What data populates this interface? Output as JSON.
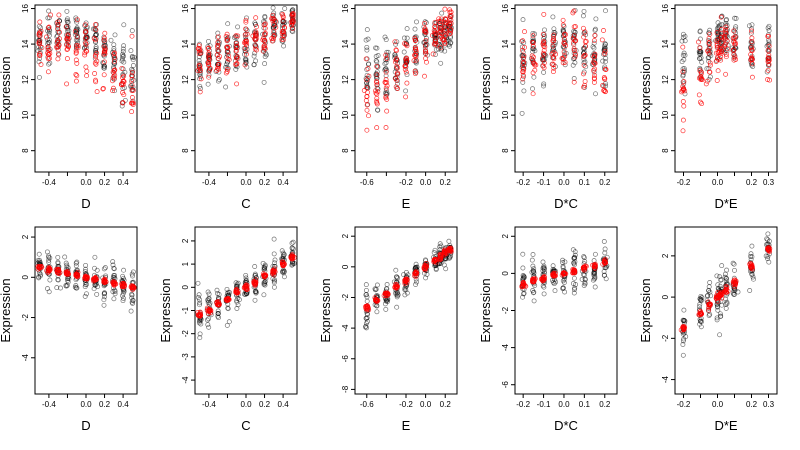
{
  "chart_data": [
    {
      "type": "scatter",
      "xlabel": "D",
      "ylabel": "Expression",
      "xlim": [
        -0.55,
        0.55
      ],
      "ylim": [
        6.8,
        16.2
      ],
      "xticks": [
        -0.4,
        -0.2,
        0.0,
        0.2,
        0.4
      ],
      "xtick_labels": [
        "-0.4",
        "",
        "0.0",
        "0.2",
        "0.4"
      ],
      "yticks": [
        8,
        10,
        12,
        14,
        16
      ],
      "ytick_labels": [
        "8",
        "10",
        "12",
        "14",
        "16"
      ],
      "x_groups": [
        -0.5,
        -0.4,
        -0.3,
        -0.2,
        -0.1,
        0.0,
        0.1,
        0.2,
        0.3,
        0.4,
        0.5
      ],
      "black_center": [
        14.0,
        14.3,
        14.5,
        14.6,
        14.4,
        14.5,
        14.2,
        13.6,
        13.2,
        12.8,
        12.4
      ],
      "black_spread": [
        1.3,
        1.4,
        1.0,
        0.9,
        0.9,
        0.9,
        1.1,
        1.4,
        1.6,
        1.8,
        1.9
      ],
      "red_center": [
        14.0,
        14.2,
        14.1,
        14.0,
        13.8,
        13.6,
        13.3,
        13.0,
        12.5,
        11.8,
        11.2
      ],
      "red_spread": [
        1.3,
        1.5,
        1.2,
        1.2,
        1.3,
        1.4,
        1.4,
        1.5,
        1.7,
        1.8,
        1.8
      ]
    },
    {
      "type": "scatter",
      "xlabel": "C",
      "ylabel": "Expression",
      "xlim": [
        -0.55,
        0.55
      ],
      "ylim": [
        6.8,
        16.2
      ],
      "xticks": [
        -0.4,
        -0.2,
        0.0,
        0.2,
        0.4
      ],
      "xtick_labels": [
        "-0.4",
        "",
        "0.0",
        "0.2",
        "0.4"
      ],
      "yticks": [
        8,
        10,
        12,
        14,
        16
      ],
      "ytick_labels": [
        "8",
        "10",
        "12",
        "14",
        "16"
      ],
      "x_groups": [
        -0.5,
        -0.4,
        -0.3,
        -0.2,
        -0.1,
        0.0,
        0.1,
        0.2,
        0.3,
        0.4,
        0.5
      ],
      "black_center": [
        12.6,
        12.8,
        13.1,
        13.4,
        13.7,
        13.9,
        14.2,
        14.5,
        14.8,
        15.0,
        15.2
      ],
      "black_spread": [
        1.2,
        1.3,
        1.3,
        1.3,
        1.2,
        1.2,
        1.2,
        1.2,
        1.0,
        0.9,
        0.8
      ],
      "red_center": [
        12.8,
        13.0,
        13.3,
        13.6,
        13.8,
        14.0,
        14.3,
        14.6,
        14.9,
        15.1,
        15.3
      ],
      "red_spread": [
        1.5,
        1.6,
        1.5,
        1.4,
        1.3,
        1.3,
        1.2,
        1.1,
        0.9,
        0.8,
        0.7
      ]
    },
    {
      "type": "scatter",
      "xlabel": "E",
      "ylabel": "Expression",
      "xlim": [
        -0.72,
        0.32
      ],
      "ylim": [
        6.8,
        16.2
      ],
      "xticks": [
        -0.6,
        -0.4,
        -0.2,
        0.0,
        0.2
      ],
      "xtick_labels": [
        "-0.6",
        "",
        "-0.2",
        "0.0",
        "0.2"
      ],
      "yticks": [
        8,
        10,
        12,
        14,
        16
      ],
      "ytick_labels": [
        "8",
        "10",
        "12",
        "14",
        "16"
      ],
      "x_groups": [
        -0.6,
        -0.5,
        -0.4,
        -0.3,
        -0.2,
        -0.1,
        0.0,
        0.1,
        0.15,
        0.2,
        0.25
      ],
      "black_center": [
        12.5,
        12.2,
        12.6,
        12.9,
        13.2,
        13.6,
        14.0,
        14.3,
        14.5,
        14.7,
        14.8
      ],
      "black_spread": [
        1.8,
        1.9,
        1.7,
        1.6,
        1.5,
        1.4,
        1.2,
        1.0,
        1.1,
        0.9,
        0.8
      ],
      "red_center": [
        11.0,
        11.4,
        11.9,
        12.4,
        12.9,
        13.4,
        13.9,
        14.4,
        14.8,
        15.0,
        15.2
      ],
      "red_spread": [
        1.8,
        1.6,
        1.5,
        1.4,
        1.3,
        1.2,
        1.1,
        1.0,
        0.9,
        0.8,
        0.7
      ]
    },
    {
      "type": "scatter",
      "xlabel": "D*C",
      "ylabel": "Expression",
      "xlim": [
        -0.24,
        0.26
      ],
      "ylim": [
        6.8,
        16.2
      ],
      "xticks": [
        -0.2,
        -0.1,
        0.0,
        0.1,
        0.2
      ],
      "xtick_labels": [
        "-0.2",
        "-0.1",
        "0.0",
        "0.1",
        "0.2"
      ],
      "yticks": [
        8,
        10,
        12,
        14,
        16
      ],
      "ytick_labels": [
        "8",
        "10",
        "12",
        "14",
        "16"
      ],
      "x_groups": [
        -0.2,
        -0.15,
        -0.1,
        -0.05,
        0.0,
        0.05,
        0.1,
        0.15,
        0.2
      ],
      "black_center": [
        13.0,
        13.4,
        13.6,
        13.8,
        14.0,
        13.9,
        13.6,
        13.4,
        13.0
      ],
      "black_spread": [
        1.8,
        1.6,
        1.5,
        1.4,
        1.3,
        1.4,
        1.5,
        1.6,
        1.8
      ],
      "red_center": [
        12.8,
        13.2,
        13.4,
        13.6,
        13.9,
        13.7,
        13.4,
        13.2,
        12.9
      ],
      "red_spread": [
        1.9,
        1.7,
        1.6,
        1.5,
        1.4,
        1.5,
        1.6,
        1.7,
        1.9
      ]
    },
    {
      "type": "scatter",
      "xlabel": "D*E",
      "ylabel": "Expression",
      "xlim": [
        -0.25,
        0.35
      ],
      "ylim": [
        6.8,
        16.2
      ],
      "xticks": [
        -0.2,
        -0.1,
        0.0,
        0.1,
        0.2,
        0.3
      ],
      "xtick_labels": [
        "-0.2",
        "",
        "0.0",
        "",
        "0.2",
        "0.3"
      ],
      "yticks": [
        8,
        10,
        12,
        14,
        16
      ],
      "ytick_labels": [
        "8",
        "10",
        "12",
        "14",
        "16"
      ],
      "x_groups": [
        -0.2,
        -0.1,
        -0.05,
        0.0,
        0.02,
        0.05,
        0.1,
        0.2,
        0.3
      ],
      "black_center": [
        13.0,
        13.4,
        13.8,
        14.2,
        14.3,
        14.2,
        14.0,
        13.8,
        13.6
      ],
      "black_spread": [
        1.8,
        1.6,
        1.4,
        1.2,
        1.1,
        1.2,
        1.3,
        1.4,
        1.5
      ],
      "red_center": [
        11.5,
        12.4,
        13.0,
        13.8,
        14.0,
        14.0,
        13.9,
        13.7,
        13.5
      ],
      "red_spread": [
        2.0,
        1.7,
        1.5,
        1.4,
        1.3,
        1.3,
        1.4,
        1.5,
        1.6
      ]
    },
    {
      "type": "scatter",
      "xlabel": "D",
      "ylabel": "Expression",
      "xlim": [
        -0.55,
        0.55
      ],
      "ylim": [
        -5.8,
        2.5
      ],
      "xticks": [
        -0.4,
        -0.2,
        0.0,
        0.2,
        0.4
      ],
      "xtick_labels": [
        "-0.4",
        "",
        "0.0",
        "0.2",
        "0.4"
      ],
      "yticks": [
        -4,
        -2,
        0,
        2
      ],
      "ytick_labels": [
        "-4",
        "-2",
        "0",
        "2"
      ],
      "x_groups": [
        -0.5,
        -0.4,
        -0.3,
        -0.2,
        -0.1,
        0.0,
        0.1,
        0.2,
        0.3,
        0.4,
        0.5
      ],
      "black_center": [
        0.5,
        0.4,
        0.3,
        0.2,
        0.1,
        0.0,
        -0.1,
        -0.2,
        -0.3,
        -0.4,
        -0.5
      ],
      "black_spread": [
        0.7,
        0.8,
        0.7,
        0.7,
        0.7,
        0.8,
        0.8,
        0.8,
        0.9,
        0.9,
        0.9
      ],
      "red_center": [
        0.5,
        0.4,
        0.3,
        0.2,
        0.1,
        0.0,
        -0.1,
        -0.2,
        -0.3,
        -0.4,
        -0.5
      ],
      "red_spread": [
        0.1,
        0.1,
        0.1,
        0.1,
        0.1,
        0.1,
        0.1,
        0.1,
        0.1,
        0.1,
        0.1
      ]
    },
    {
      "type": "scatter",
      "xlabel": "C",
      "ylabel": "Expression",
      "xlim": [
        -0.55,
        0.55
      ],
      "ylim": [
        -4.6,
        2.6
      ],
      "xticks": [
        -0.4,
        -0.2,
        0.0,
        0.2,
        0.4
      ],
      "xtick_labels": [
        "-0.4",
        "",
        "0.0",
        "0.2",
        "0.4"
      ],
      "yticks": [
        -4,
        -3,
        -2,
        -1,
        0,
        1,
        2
      ],
      "ytick_labels": [
        "-4",
        "-3",
        "-2",
        "-1",
        "0",
        "1",
        "2"
      ],
      "x_groups": [
        -0.5,
        -0.4,
        -0.3,
        -0.2,
        -0.1,
        0.0,
        0.1,
        0.2,
        0.3,
        0.4,
        0.5
      ],
      "black_center": [
        -1.2,
        -1.0,
        -0.7,
        -0.5,
        -0.2,
        0.0,
        0.2,
        0.5,
        0.7,
        1.0,
        1.3
      ],
      "black_spread": [
        0.7,
        0.8,
        0.8,
        0.7,
        0.6,
        0.6,
        0.6,
        0.7,
        0.7,
        0.6,
        0.6
      ],
      "red_center": [
        -1.2,
        -1.0,
        -0.7,
        -0.5,
        -0.2,
        0.0,
        0.2,
        0.5,
        0.7,
        1.0,
        1.3
      ],
      "red_spread": [
        0.1,
        0.1,
        0.1,
        0.1,
        0.1,
        0.1,
        0.1,
        0.1,
        0.1,
        0.1,
        0.1
      ]
    },
    {
      "type": "scatter",
      "xlabel": "E",
      "ylabel": "Expression",
      "xlim": [
        -0.72,
        0.32
      ],
      "ylim": [
        -8.3,
        2.6
      ],
      "xticks": [
        -0.6,
        -0.4,
        -0.2,
        0.0,
        0.2
      ],
      "xtick_labels": [
        "-0.6",
        "",
        "-0.2",
        "0.0",
        "0.2"
      ],
      "yticks": [
        -8,
        -6,
        -4,
        -2,
        0,
        2
      ],
      "ytick_labels": [
        "-8",
        "-6",
        "-4",
        "-2",
        "0",
        "2"
      ],
      "x_groups": [
        -0.6,
        -0.5,
        -0.4,
        -0.3,
        -0.2,
        -0.1,
        0.0,
        0.1,
        0.15,
        0.2,
        0.25
      ],
      "black_center": [
        -2.7,
        -2.2,
        -1.8,
        -1.3,
        -0.9,
        -0.4,
        0.0,
        0.4,
        0.6,
        0.9,
        1.1
      ],
      "black_spread": [
        1.3,
        1.0,
        0.9,
        0.8,
        0.8,
        0.7,
        0.7,
        0.7,
        0.8,
        0.6,
        0.5
      ],
      "red_center": [
        -2.7,
        -2.2,
        -1.8,
        -1.3,
        -0.9,
        -0.4,
        0.0,
        0.4,
        0.6,
        0.9,
        1.1
      ],
      "red_spread": [
        0.15,
        0.15,
        0.15,
        0.15,
        0.15,
        0.15,
        0.15,
        0.15,
        0.15,
        0.15,
        0.15
      ]
    },
    {
      "type": "scatter",
      "xlabel": "D*C",
      "ylabel": "Expression",
      "xlim": [
        -0.24,
        0.26
      ],
      "ylim": [
        -6.5,
        2.5
      ],
      "xticks": [
        -0.2,
        -0.1,
        0.0,
        0.1,
        0.2
      ],
      "xtick_labels": [
        "-0.2",
        "-0.1",
        "0.0",
        "0.1",
        "0.2"
      ],
      "yticks": [
        -6,
        -4,
        -2,
        0,
        2
      ],
      "ytick_labels": [
        "-6",
        "-4",
        "-2",
        "0",
        "2"
      ],
      "x_groups": [
        -0.2,
        -0.15,
        -0.1,
        -0.05,
        0.0,
        0.05,
        0.1,
        0.15,
        0.2
      ],
      "black_center": [
        -0.6,
        -0.4,
        -0.3,
        -0.1,
        0.0,
        0.1,
        0.3,
        0.4,
        0.6
      ],
      "black_spread": [
        0.9,
        1.0,
        1.0,
        1.0,
        1.0,
        1.0,
        1.0,
        0.9,
        0.8
      ],
      "red_center": [
        -0.6,
        -0.4,
        -0.3,
        -0.1,
        0.0,
        0.1,
        0.3,
        0.4,
        0.6
      ],
      "red_spread": [
        0.1,
        0.1,
        0.1,
        0.1,
        0.1,
        0.1,
        0.1,
        0.1,
        0.1
      ]
    },
    {
      "type": "scatter",
      "xlabel": "D*E",
      "ylabel": "Expression",
      "xlim": [
        -0.25,
        0.35
      ],
      "ylim": [
        -4.7,
        3.4
      ],
      "xticks": [
        -0.2,
        -0.1,
        0.0,
        0.1,
        0.2,
        0.3
      ],
      "xtick_labels": [
        "-0.2",
        "",
        "0.0",
        "",
        "0.2",
        "0.3"
      ],
      "yticks": [
        -4,
        -2,
        0,
        2
      ],
      "ytick_labels": [
        "-4",
        "-2",
        "0",
        "2"
      ],
      "x_groups": [
        -0.2,
        -0.1,
        -0.05,
        0.0,
        0.02,
        0.05,
        0.1,
        0.2,
        0.3
      ],
      "black_center": [
        -1.5,
        -0.8,
        -0.4,
        0.0,
        0.1,
        0.3,
        0.7,
        1.5,
        2.3
      ],
      "black_spread": [
        1.0,
        1.0,
        1.0,
        1.1,
        1.1,
        1.0,
        0.9,
        0.8,
        0.6
      ],
      "red_center": [
        -1.5,
        -0.8,
        -0.4,
        0.0,
        0.1,
        0.3,
        0.7,
        1.5,
        2.3
      ],
      "red_spread": [
        0.15,
        0.15,
        0.15,
        0.15,
        0.15,
        0.15,
        0.15,
        0.15,
        0.15
      ]
    }
  ],
  "colors": {
    "observed": "#000000",
    "fitted": "#ff0000"
  }
}
